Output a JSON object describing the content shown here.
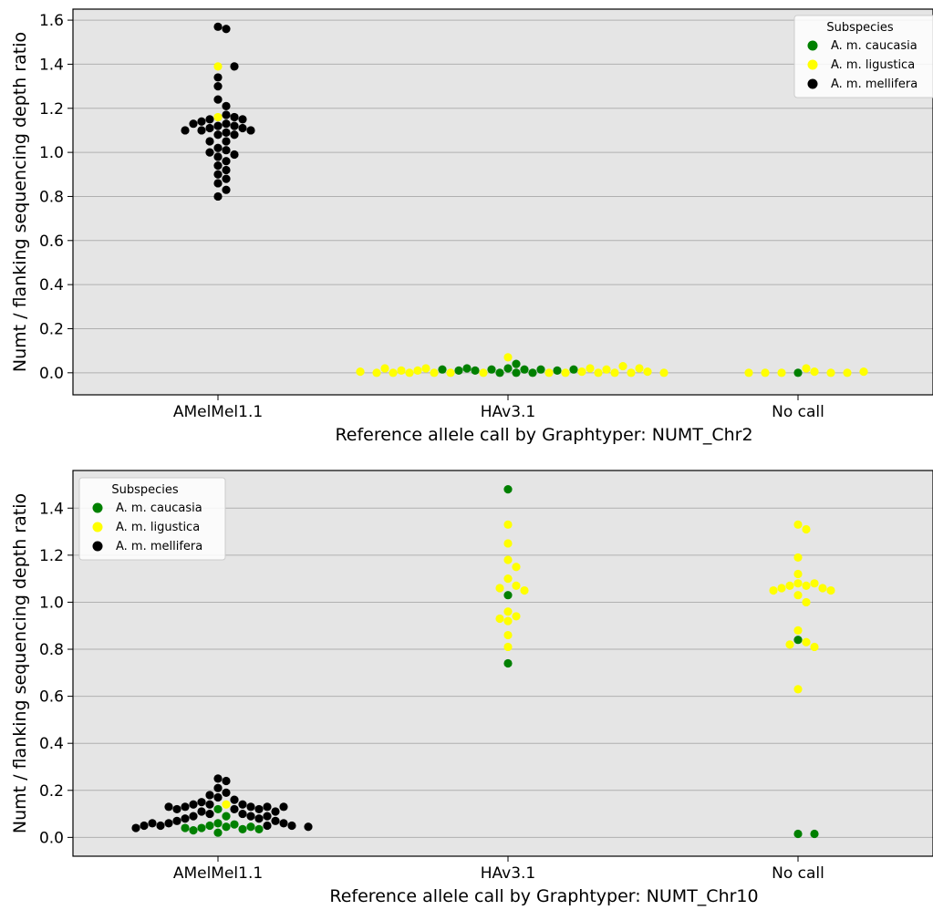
{
  "chart_data": [
    {
      "type": "scatter",
      "style": "swarm",
      "xlabel": "Reference allele call by Graphtyper: NUMT_Chr2",
      "ylabel": "Numt / flanking sequencing depth ratio",
      "categories": [
        "AMelMel1.1",
        "HAv3.1",
        "No call"
      ],
      "ylim": [
        -0.1,
        1.65
      ],
      "yticks": [
        "0.0",
        "0.2",
        "0.4",
        "0.6",
        "0.8",
        "1.0",
        "1.2",
        "1.4",
        "1.6"
      ],
      "grid": "horizontal",
      "legend": {
        "title": "Subspecies",
        "placement": "top-right"
      },
      "series": [
        {
          "name": "A. m. caucasia",
          "color": "#008000",
          "points": [
            {
              "category": "HAv3.1",
              "values": [
                0.02,
                0.015,
                0.015,
                0.015,
                0.01,
                0.0,
                0.0,
                0.0,
                0.04,
                0.01,
                0.01,
                0.015,
                0.015,
                0.02
              ]
            },
            {
              "category": "No call",
              "values": [
                0.0
              ]
            }
          ]
        },
        {
          "name": "A. m. ligustica",
          "color": "#ffff00",
          "points": [
            {
              "category": "AMelMel1.1",
              "values": [
                1.39,
                1.16
              ]
            },
            {
              "category": "HAv3.1",
              "values": [
                0.02,
                0.02,
                0.015,
                0.01,
                0.005,
                0.0,
                0.0,
                0.0,
                0.0,
                0.0,
                0.0,
                0.0,
                0.0,
                0.0,
                0.0,
                0.0,
                0.005,
                0.005,
                0.01,
                0.07,
                0.03,
                0.0,
                0.02,
                0.02
              ]
            },
            {
              "category": "No call",
              "values": [
                0.02,
                0.005,
                0.0,
                0.0,
                0.0,
                0.0,
                0.0,
                0.005
              ]
            }
          ]
        },
        {
          "name": "A. m. mellifera",
          "color": "#000000",
          "points": [
            {
              "category": "AMelMel1.1",
              "values": [
                1.57,
                1.56,
                1.39,
                1.34,
                1.3,
                1.24,
                1.21,
                1.17,
                1.16,
                1.15,
                1.15,
                1.14,
                1.13,
                1.13,
                1.12,
                1.12,
                1.11,
                1.11,
                1.1,
                1.1,
                1.1,
                1.09,
                1.08,
                1.08,
                1.05,
                1.05,
                1.02,
                1.01,
                1.0,
                0.99,
                0.98,
                0.96,
                0.94,
                0.92,
                0.9,
                0.88,
                0.86,
                0.83,
                0.8
              ]
            }
          ]
        }
      ]
    },
    {
      "type": "scatter",
      "style": "swarm",
      "xlabel": "Reference allele call by Graphtyper: NUMT_Chr10",
      "ylabel": "Numt / flanking sequencing depth ratio",
      "categories": [
        "AMelMel1.1",
        "HAv3.1",
        "No call"
      ],
      "ylim": [
        -0.08,
        1.56
      ],
      "yticks": [
        "0.0",
        "0.2",
        "0.4",
        "0.6",
        "0.8",
        "1.0",
        "1.2",
        "1.4"
      ],
      "grid": "horizontal",
      "legend": {
        "title": "Subspecies",
        "placement": "top-left"
      },
      "series": [
        {
          "name": "A. m. caucasia",
          "color": "#008000",
          "points": [
            {
              "category": "AMelMel1.1",
              "values": [
                0.06,
                0.055,
                0.05,
                0.09,
                0.045,
                0.04,
                0.035,
                0.12,
                0.03,
                0.02,
                0.035,
                0.04,
                0.045
              ]
            },
            {
              "category": "HAv3.1",
              "values": [
                1.48,
                1.03,
                0.74
              ]
            },
            {
              "category": "No call",
              "values": [
                0.84,
                0.015,
                0.015
              ]
            }
          ]
        },
        {
          "name": "A. m. ligustica",
          "color": "#ffff00",
          "points": [
            {
              "category": "AMelMel1.1",
              "values": [
                0.14
              ]
            },
            {
              "category": "HAv3.1",
              "values": [
                1.33,
                1.25,
                1.18,
                1.15,
                1.1,
                1.07,
                1.06,
                1.05,
                0.96,
                0.94,
                0.93,
                0.92,
                0.86,
                0.81
              ]
            },
            {
              "category": "No call",
              "values": [
                1.33,
                1.31,
                1.19,
                1.12,
                1.08,
                1.08,
                1.07,
                1.07,
                1.06,
                1.06,
                1.05,
                1.05,
                1.03,
                1.0,
                0.88,
                0.83,
                0.82,
                0.81,
                0.63
              ]
            }
          ]
        },
        {
          "name": "A. m. mellifera",
          "color": "#000000",
          "points": [
            {
              "category": "AMelMel1.1",
              "values": [
                0.25,
                0.24,
                0.21,
                0.19,
                0.18,
                0.17,
                0.16,
                0.15,
                0.14,
                0.14,
                0.14,
                0.13,
                0.13,
                0.13,
                0.13,
                0.13,
                0.12,
                0.12,
                0.12,
                0.11,
                0.11,
                0.1,
                0.1,
                0.09,
                0.09,
                0.09,
                0.08,
                0.08,
                0.07,
                0.07,
                0.06,
                0.06,
                0.06,
                0.05,
                0.05,
                0.05,
                0.05,
                0.045,
                0.04
              ]
            }
          ]
        }
      ]
    }
  ]
}
